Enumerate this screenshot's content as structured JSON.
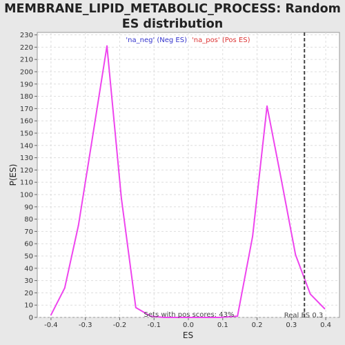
{
  "chart_data": {
    "type": "line",
    "title": "MEMBRANE_LIPID_METABOLIC_PROCESS: Random ES distribution",
    "xlabel": "ES",
    "ylabel": "P(ES)",
    "xlim": [
      -0.44,
      0.44
    ],
    "ylim": [
      0,
      232
    ],
    "xticks": [
      "-0.4",
      "-0.3",
      "-0.2",
      "-0.1",
      "0.0",
      "0.1",
      "0.2",
      "0.3",
      "0.4"
    ],
    "yticks": [
      0,
      10,
      20,
      30,
      40,
      50,
      60,
      70,
      80,
      90,
      100,
      110,
      120,
      130,
      140,
      150,
      160,
      170,
      180,
      190,
      200,
      210,
      220,
      230
    ],
    "grid": true,
    "legend": [
      {
        "label": "'na_neg' (Neg ES)",
        "color": "#3333cc"
      },
      {
        "label": "'na_pos' (Pos ES)",
        "color": "#dd3333"
      }
    ],
    "legend_placement": "top-center",
    "series": [
      {
        "color": "#ee44ee",
        "x": [
          -0.4,
          -0.36,
          -0.32,
          -0.28,
          -0.237,
          -0.195,
          -0.153,
          -0.11,
          -0.07,
          -0.03,
          0.01,
          0.05,
          0.09,
          0.143,
          0.187,
          0.229,
          0.27,
          0.312,
          0.355,
          0.397
        ],
        "y": [
          2,
          24,
          75,
          145,
          221,
          97,
          8,
          1,
          0,
          0,
          0,
          0,
          0,
          1,
          66,
          172,
          113,
          51,
          19,
          7
        ]
      }
    ],
    "real_es": 0.338,
    "annotations": {
      "pos_scores": "Sets with pos scores: 43%",
      "real_es": "Real ES 0.3"
    }
  }
}
